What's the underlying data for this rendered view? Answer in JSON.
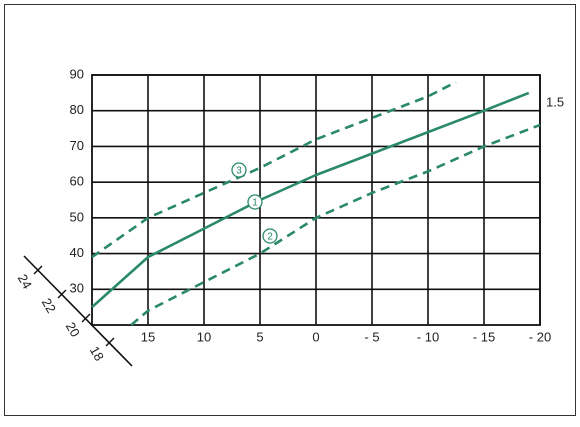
{
  "chart_data": {
    "type": "line",
    "xlim": [
      20,
      -20
    ],
    "xticks": [
      15,
      10,
      5,
      0,
      {
        "value": -5,
        "label": "- 5"
      },
      {
        "value": -10,
        "label": "- 10"
      },
      {
        "value": -15,
        "label": "- 15"
      },
      {
        "value": -20,
        "label": "- 20"
      }
    ],
    "ylim": [
      20,
      90
    ],
    "yticks": [
      30,
      40,
      50,
      60,
      70,
      80,
      90
    ],
    "grid": true,
    "room_temperature_ticks": [
      24,
      22,
      20,
      18
    ],
    "annotation": "1.5",
    "series": [
      {
        "name": "1",
        "color": "#2a8a66",
        "dash": false,
        "x": [
          20,
          15,
          10,
          5,
          0,
          -5,
          -10,
          -15,
          -19
        ],
        "values": [
          25,
          39,
          47,
          55,
          62,
          68,
          74,
          80,
          85
        ]
      },
      {
        "name": "2",
        "color": "#2a8a66",
        "dash": true,
        "x": [
          16.5,
          15,
          10,
          5,
          0,
          -5,
          -10,
          -15,
          -20
        ],
        "values": [
          20,
          24,
          32,
          40,
          50,
          57,
          63,
          70,
          76
        ]
      },
      {
        "name": "3",
        "color": "#2a8a66",
        "dash": true,
        "x": [
          20,
          15,
          10,
          5,
          0,
          -5,
          -10,
          -12.5
        ],
        "values": [
          39,
          50,
          57,
          64,
          72,
          78,
          84,
          88
        ]
      }
    ]
  }
}
